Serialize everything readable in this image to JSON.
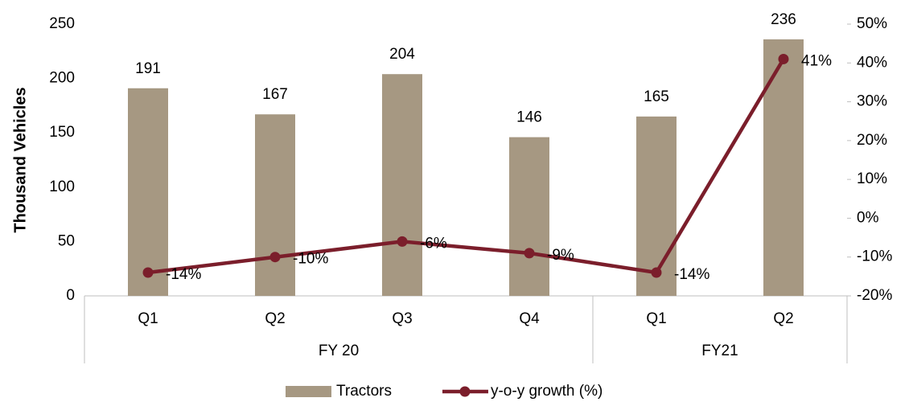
{
  "chart_data": {
    "type": "bar_line",
    "y_label": "Thousand Vehicles",
    "groups": [
      {
        "label": "FY 20",
        "categories": [
          "Q1",
          "Q2",
          "Q3",
          "Q4"
        ]
      },
      {
        "label": "FY21",
        "categories": [
          "Q1",
          "Q2"
        ]
      }
    ],
    "series": [
      {
        "name": "Tractors",
        "type": "bar",
        "color": "#a69882",
        "values": [
          191,
          167,
          204,
          146,
          165,
          236
        ]
      },
      {
        "name": "y-o-y growth (%)",
        "type": "line",
        "axis": "y2",
        "color": "#7b1e2b",
        "values": [
          -14,
          -10,
          -6,
          -9,
          -14,
          41
        ],
        "value_labels": [
          "-14%",
          "-10%",
          "-6%",
          "-9%",
          "-14%",
          "41%"
        ]
      }
    ],
    "ylim": [
      0,
      250
    ],
    "yticks": [
      0,
      50,
      100,
      150,
      200,
      250
    ],
    "y2lim": [
      -20,
      50
    ],
    "y2ticks": [
      {
        "value": -20,
        "label": "-20%"
      },
      {
        "value": -10,
        "label": "-10%"
      },
      {
        "value": 0,
        "label": "0%"
      },
      {
        "value": 10,
        "label": "10%"
      },
      {
        "value": 20,
        "label": "20%"
      },
      {
        "value": 30,
        "label": "30%"
      },
      {
        "value": 40,
        "label": "40%"
      },
      {
        "value": 50,
        "label": "50%"
      }
    ],
    "legend": "bottom",
    "grid": false
  }
}
